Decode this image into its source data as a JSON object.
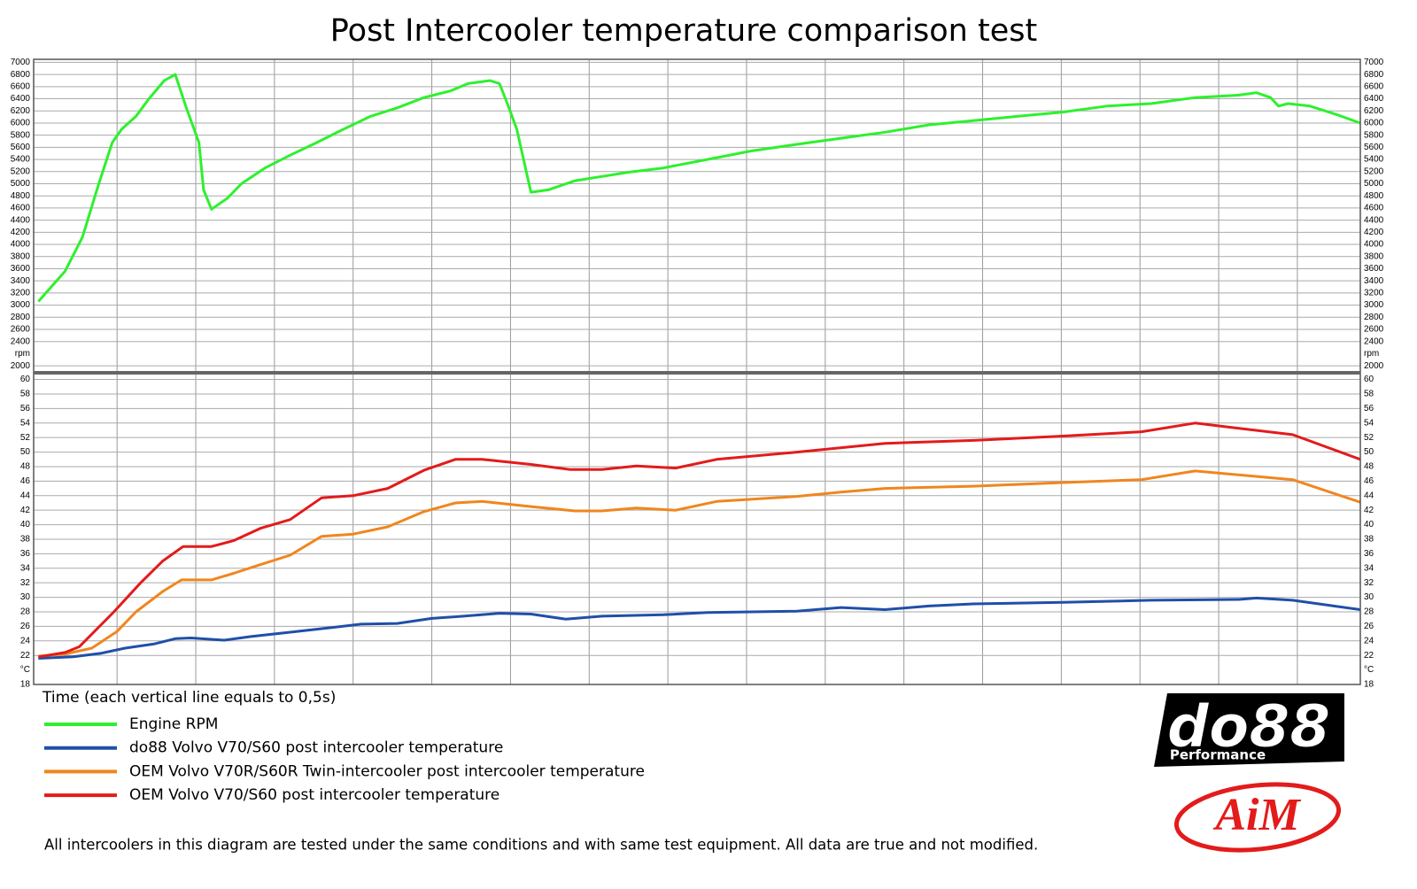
{
  "title": "Post Intercooler temperature comparison test",
  "x_axis_label": "Time (each vertical line equals to 0,5s)",
  "footnote": "All intercoolers in this diagram are tested under the same conditions and with same test equipment. All data are true and not modified.",
  "logos": {
    "brand": "do88",
    "brand_sub": "Performance",
    "logger": "AiM"
  },
  "chart_data": [
    {
      "type": "line",
      "unit": "rpm",
      "xlim": [
        -0.03,
        8.4
      ],
      "xgrid": [
        0.5,
        1.0,
        1.5,
        2.0,
        2.5,
        3.0,
        3.5,
        4.0,
        4.5,
        5.0,
        5.5,
        6.0,
        6.5,
        7.0,
        7.5,
        8.0
      ],
      "ylim": [
        1900,
        7050
      ],
      "yticks": [
        2000,
        2400,
        2600,
        2800,
        3000,
        3200,
        3400,
        3600,
        3800,
        4000,
        4200,
        4400,
        4600,
        4800,
        5000,
        5200,
        5400,
        5600,
        5800,
        6000,
        6200,
        6400,
        6600,
        6800,
        7000
      ],
      "grid": true,
      "series": [
        {
          "name": "Engine RPM",
          "color": "#2ef02e",
          "x": [
            0,
            0.17,
            0.28,
            0.38,
            0.47,
            0.53,
            0.62,
            0.7,
            0.8,
            0.87,
            0.94,
            1.02,
            1.05,
            1.1,
            1.2,
            1.29,
            1.44,
            1.6,
            1.77,
            1.94,
            2.11,
            2.28,
            2.45,
            2.62,
            2.73,
            2.87,
            2.93,
            2.98,
            3.04,
            3.13,
            3.24,
            3.41,
            3.58,
            3.75,
            3.97,
            4.25,
            4.53,
            4.82,
            5.1,
            5.38,
            5.66,
            5.94,
            6.22,
            6.51,
            6.79,
            7.07,
            7.35,
            7.63,
            7.74,
            7.83,
            7.88,
            7.94,
            8.08,
            8.25,
            8.4
          ],
          "values": [
            3060,
            3560,
            4120,
            4970,
            5680,
            5900,
            6110,
            6390,
            6700,
            6800,
            6250,
            5680,
            4900,
            4580,
            4760,
            5000,
            5260,
            5470,
            5680,
            5900,
            6110,
            6250,
            6420,
            6530,
            6650,
            6700,
            6650,
            6320,
            5900,
            4860,
            4900,
            5050,
            5120,
            5190,
            5260,
            5400,
            5540,
            5650,
            5750,
            5850,
            5970,
            6040,
            6110,
            6180,
            6280,
            6320,
            6420,
            6460,
            6500,
            6420,
            6280,
            6320,
            6280,
            6140,
            6000
          ]
        }
      ]
    },
    {
      "type": "line",
      "unit": "°C",
      "xlim": [
        -0.03,
        8.4
      ],
      "xgrid": [
        0.5,
        1.0,
        1.5,
        2.0,
        2.5,
        3.0,
        3.5,
        4.0,
        4.5,
        5.0,
        5.5,
        6.0,
        6.5,
        7.0,
        7.5,
        8.0
      ],
      "ylim": [
        18,
        60.8
      ],
      "yticks": [
        18,
        22,
        24,
        26,
        28,
        30,
        32,
        34,
        36,
        38,
        40,
        42,
        44,
        46,
        48,
        50,
        52,
        54,
        56,
        58,
        60
      ],
      "grid": true,
      "series": [
        {
          "name": "do88 Volvo V70/S60 post intercooler temperature",
          "color": "#1f4fa8",
          "x": [
            0,
            0.22,
            0.4,
            0.55,
            0.74,
            0.87,
            0.97,
            1.18,
            1.35,
            1.6,
            1.85,
            2.05,
            2.28,
            2.5,
            2.7,
            2.93,
            3.13,
            3.35,
            3.58,
            3.97,
            4.25,
            4.82,
            5.1,
            5.38,
            5.66,
            5.94,
            6.51,
            7.07,
            7.63,
            7.74,
            7.97,
            8.4
          ],
          "values": [
            21.6,
            21.8,
            22.3,
            23,
            23.6,
            24.3,
            24.4,
            24.1,
            24.6,
            25.2,
            25.8,
            26.3,
            26.4,
            27.1,
            27.4,
            27.8,
            27.7,
            27,
            27.4,
            27.6,
            27.9,
            28.1,
            28.6,
            28.3,
            28.8,
            29.1,
            29.3,
            29.6,
            29.7,
            29.9,
            29.6,
            28.3
          ]
        },
        {
          "name": "OEM Volvo V70R/S60R Twin-intercooler post intercooler temperature",
          "color": "#f0861e",
          "x": [
            0,
            0.17,
            0.34,
            0.5,
            0.62,
            0.79,
            0.91,
            1.1,
            1.24,
            1.41,
            1.6,
            1.8,
            2.0,
            2.22,
            2.45,
            2.65,
            2.82,
            3.13,
            3.41,
            3.58,
            3.8,
            4.05,
            4.31,
            4.82,
            5.1,
            5.38,
            5.94,
            6.51,
            7.01,
            7.35,
            7.97,
            8.4
          ],
          "values": [
            21.9,
            22.2,
            23,
            25.3,
            28,
            30.8,
            32.4,
            32.4,
            33.3,
            34.5,
            35.8,
            38.4,
            38.7,
            39.7,
            41.8,
            43,
            43.2,
            42.5,
            41.9,
            41.9,
            42.3,
            42,
            43.2,
            43.9,
            44.5,
            45,
            45.3,
            45.8,
            46.2,
            47.4,
            46.2,
            43.1
          ]
        },
        {
          "name": "OEM Volvo V70/S60 post intercooler temperature",
          "color": "#e31b1b",
          "x": [
            0,
            0.17,
            0.26,
            0.48,
            0.65,
            0.79,
            0.92,
            1.1,
            1.24,
            1.41,
            1.6,
            1.8,
            2.0,
            2.22,
            2.45,
            2.65,
            2.82,
            3.13,
            3.38,
            3.58,
            3.8,
            4.05,
            4.31,
            4.82,
            5.38,
            5.94,
            6.51,
            7.01,
            7.35,
            7.97,
            8.4
          ],
          "values": [
            21.8,
            22.4,
            23.2,
            28,
            32,
            35,
            37,
            37,
            37.8,
            39.5,
            40.7,
            43.7,
            44,
            45,
            47.5,
            49,
            49,
            48.3,
            47.6,
            47.6,
            48.1,
            47.8,
            49,
            50,
            51.2,
            51.6,
            52.2,
            52.8,
            54,
            52.4,
            49
          ]
        }
      ]
    }
  ]
}
